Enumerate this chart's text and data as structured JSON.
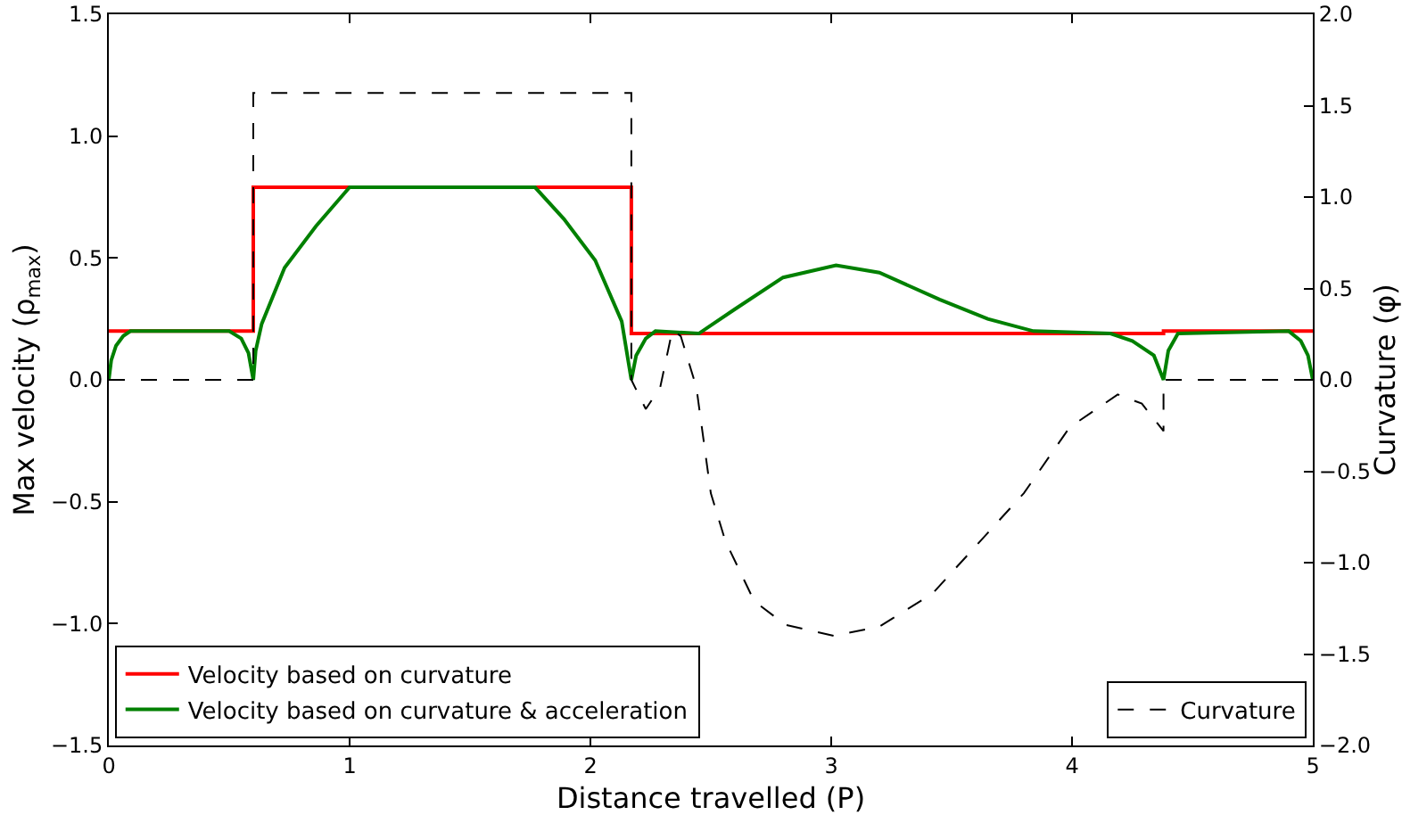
{
  "chart_data": {
    "type": "line",
    "xlabel": "Distance travelled (P)",
    "ylabel": "Max velocity (ρ$_{max}$)",
    "y2label": "Curvature (φ)",
    "xlim": [
      0,
      5
    ],
    "xticks": [
      0,
      1,
      2,
      3,
      4,
      5
    ],
    "ylim": [
      -1.5,
      1.5
    ],
    "yticks": [
      {
        "value": -1.5,
        "label": "−1.5"
      },
      {
        "value": -1,
        "label": "−1.0"
      },
      {
        "value": -0.5,
        "label": "−0.5"
      },
      {
        "value": 0,
        "label": "0.0"
      },
      {
        "value": 0.5,
        "label": "0.5"
      },
      {
        "value": 1,
        "label": "1.0"
      },
      {
        "value": 1.5,
        "label": "1.5"
      }
    ],
    "y2lim": [
      -2,
      2
    ],
    "y2ticks": [
      {
        "value": -2,
        "label": "−2.0"
      },
      {
        "value": -1.5,
        "label": "−1.5"
      },
      {
        "value": -1,
        "label": "−1.0"
      },
      {
        "value": -0.5,
        "label": "−0.5"
      },
      {
        "value": 0,
        "label": "0.0"
      },
      {
        "value": 0.5,
        "label": "0.5"
      },
      {
        "value": 1,
        "label": "1.0"
      },
      {
        "value": 1.5,
        "label": "1.5"
      },
      {
        "value": 2,
        "label": "2.0"
      }
    ],
    "grid": false,
    "legend": "bottom",
    "marker": "none",
    "series": [
      {
        "name": "Velocity based on curvature",
        "color": "#ff0000",
        "line_style": "solid",
        "x": [
          0,
          0.6,
          0.6,
          2.17,
          2.17,
          4.38,
          4.38,
          5
        ],
        "values": [
          0.2,
          0.2,
          0.79,
          0.79,
          0.19,
          0.19,
          0.2,
          0.2
        ]
      },
      {
        "name": "Velocity based on curvature & acceleration",
        "color": "#008000",
        "line_style": "solid",
        "x": [
          0,
          0.01,
          0.03,
          0.06,
          0.09,
          0.5,
          0.55,
          0.58,
          0.6,
          0.61,
          0.635,
          0.73,
          0.86,
          1.0,
          1.77,
          1.89,
          2.02,
          2.13,
          2.17,
          2.19,
          2.23,
          2.27,
          2.45,
          2.6,
          2.8,
          3.02,
          3.2,
          3.45,
          3.65,
          3.84,
          4.16,
          4.25,
          4.34,
          4.38,
          4.4,
          4.44,
          4.9,
          4.95,
          4.98,
          5
        ],
        "values": [
          0,
          0.08,
          0.14,
          0.18,
          0.2,
          0.2,
          0.17,
          0.11,
          0,
          0.12,
          0.23,
          0.46,
          0.63,
          0.79,
          0.79,
          0.66,
          0.49,
          0.24,
          0,
          0.1,
          0.17,
          0.2,
          0.19,
          0.29,
          0.42,
          0.47,
          0.44,
          0.33,
          0.25,
          0.2,
          0.19,
          0.16,
          0.1,
          0,
          0.12,
          0.19,
          0.2,
          0.16,
          0.1,
          0
        ]
      },
      {
        "name": "Curvature",
        "color": "#000000",
        "line_style": "dashed",
        "axis": "y2",
        "x": [
          0,
          0.6,
          0.6,
          2.17,
          2.17,
          2.23,
          2.29,
          2.34,
          2.375,
          2.44,
          2.5,
          2.56,
          2.68,
          2.81,
          3.01,
          3.2,
          3.42,
          3.6,
          3.8,
          3.99,
          4.19,
          4.29,
          4.38,
          4.38,
          5
        ],
        "values": [
          0,
          0,
          1.57,
          1.57,
          0,
          -0.16,
          -0.04,
          0.27,
          0.24,
          -0.04,
          -0.62,
          -0.88,
          -1.21,
          -1.34,
          -1.4,
          -1.35,
          -1.17,
          -0.91,
          -0.62,
          -0.26,
          -0.08,
          -0.13,
          -0.28,
          0,
          0
        ]
      }
    ]
  }
}
